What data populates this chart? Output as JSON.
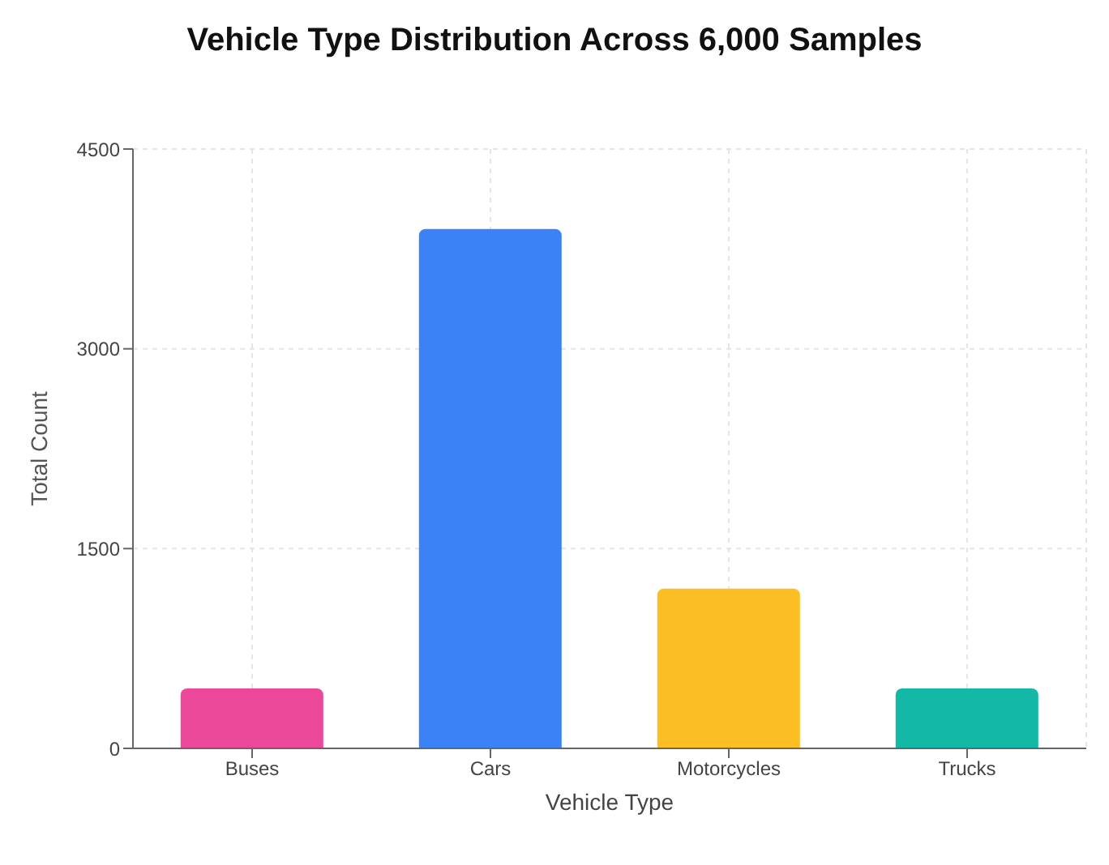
{
  "chart_data": {
    "type": "bar",
    "title": "Vehicle Type Distribution Across 6,000 Samples",
    "xlabel": "Vehicle Type",
    "ylabel": "Total Count",
    "categories": [
      "Buses",
      "Cars",
      "Motorcycles",
      "Trucks"
    ],
    "values": [
      450,
      3900,
      1200,
      450
    ],
    "colors": [
      "#ec4899",
      "#3b82f6",
      "#fbbf24",
      "#14b8a6"
    ],
    "ylim": [
      0,
      4500
    ],
    "yticks": [
      0,
      1500,
      3000,
      4500
    ],
    "grid": true
  }
}
